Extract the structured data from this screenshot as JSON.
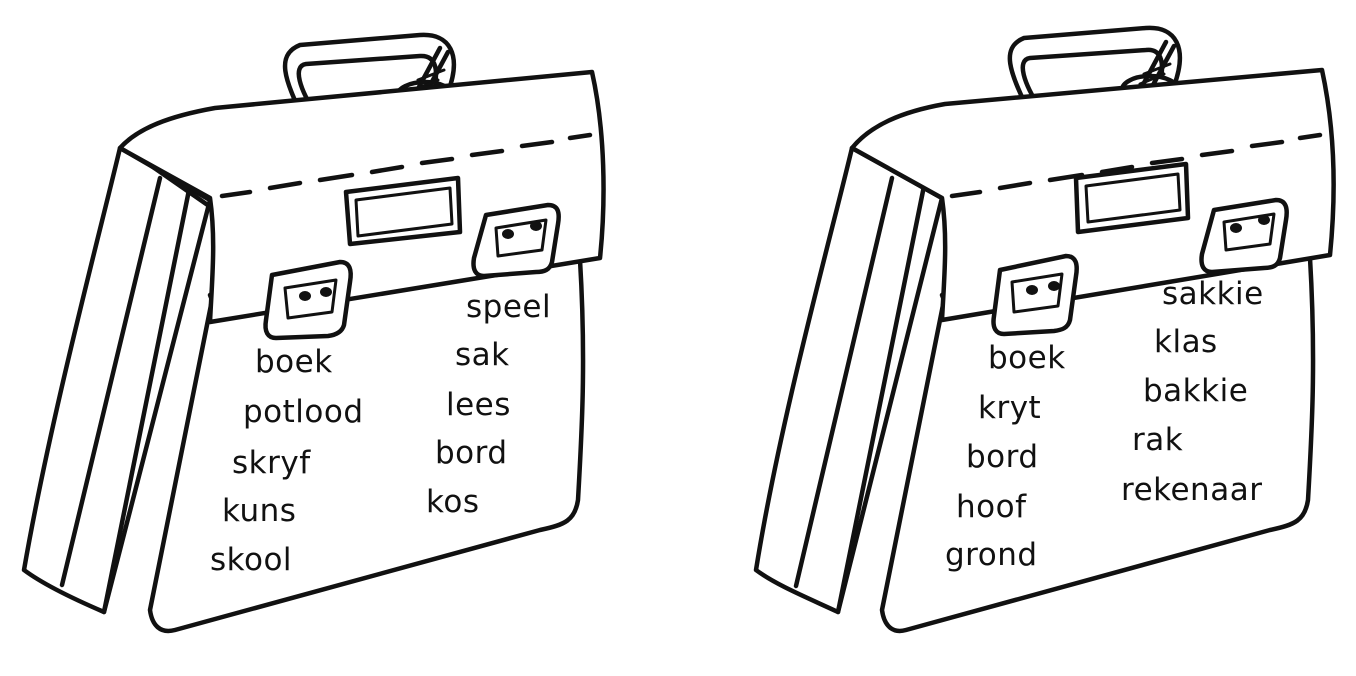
{
  "satchels": [
    {
      "name": "left",
      "left_column": [
        "boek",
        "potlood",
        "skryf",
        "kuns",
        "skool"
      ],
      "right_column": [
        "speel",
        "sak",
        "lees",
        "bord",
        "kos"
      ]
    },
    {
      "name": "right",
      "left_column": [
        "boek",
        "kryt",
        "bord",
        "hoof",
        "grond"
      ],
      "right_column": [
        "sakkie",
        "klas",
        "bakkie",
        "rak",
        "rekenaar"
      ]
    }
  ],
  "colors": {
    "ink": "#111111",
    "paper": "#ffffff"
  }
}
